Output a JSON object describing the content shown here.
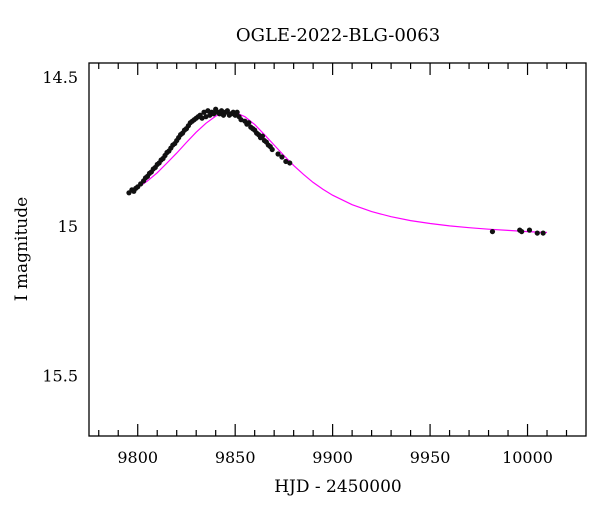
{
  "chart_data": {
    "type": "scatter",
    "title": "OGLE-2022-BLG-0063",
    "xlabel": "HJD - 2450000",
    "ylabel": "I magnitude",
    "xlim": [
      9775,
      10030
    ],
    "ylim": [
      15.7,
      14.45
    ],
    "y_inverted": true,
    "grid": false,
    "legend": "none",
    "x_ticks": [
      9800,
      9850,
      9900,
      9950,
      10000
    ],
    "x_tick_labels": [
      "9800",
      "9850",
      "9900",
      "9950",
      "10000"
    ],
    "y_ticks": [
      14.5,
      15,
      15.5
    ],
    "y_tick_labels": [
      "14.5",
      "15",
      "15.5"
    ],
    "colors": {
      "points": "#111111",
      "model": "#ff00ff",
      "axes": "#000000"
    },
    "series": [
      {
        "kind": "points",
        "x": [
          9795.5,
          9797.0,
          9798.0,
          9799.0,
          9800.0,
          9801.5,
          9803.0,
          9804.0,
          9805.0,
          9806.0,
          9807.0,
          9808.0,
          9809.0,
          9810.0,
          9811.0,
          9812.0,
          9813.0,
          9814.0,
          9815.0,
          9816.0,
          9817.0,
          9818.0,
          9819.0,
          9820.0,
          9821.0,
          9822.0,
          9823.0,
          9824.0,
          9825.0,
          9826.0,
          9827.0,
          9828.0,
          9829.0,
          9830.0,
          9831.0,
          9832.0,
          9833.0,
          9834.0,
          9835.0,
          9836.0,
          9837.0,
          9838.0,
          9839.0,
          9840.0,
          9841.0,
          9842.0,
          9843.0,
          9844.0,
          9845.0,
          9846.0,
          9847.0,
          9848.0,
          9849.0,
          9850.0,
          9851.0,
          9852.0,
          9853.0,
          9855.0,
          9856.0,
          9857.0,
          9858.0,
          9859.0,
          9860.0,
          9861.0,
          9862.0,
          9863.0,
          9864.0,
          9865.0,
          9866.0,
          9867.0,
          9868.0,
          9869.0,
          9872.0,
          9874.0,
          9876.0,
          9878.0,
          9982.0,
          9996.0,
          9997.0,
          10001.0,
          10005.0,
          10008.0
        ],
        "y": [
          14.885,
          14.875,
          14.88,
          14.87,
          14.865,
          14.855,
          14.845,
          14.835,
          14.83,
          14.82,
          14.815,
          14.805,
          14.8,
          14.79,
          14.785,
          14.775,
          14.77,
          14.76,
          14.75,
          14.745,
          14.735,
          14.725,
          14.72,
          14.71,
          14.7,
          14.69,
          14.685,
          14.675,
          14.67,
          14.66,
          14.65,
          14.645,
          14.64,
          14.635,
          14.63,
          14.625,
          14.635,
          14.615,
          14.63,
          14.61,
          14.625,
          14.615,
          14.62,
          14.605,
          14.615,
          14.62,
          14.61,
          14.625,
          14.615,
          14.61,
          14.625,
          14.62,
          14.615,
          14.625,
          14.615,
          14.63,
          14.64,
          14.645,
          14.655,
          14.65,
          14.665,
          14.67,
          14.675,
          14.685,
          14.69,
          14.7,
          14.695,
          14.71,
          14.715,
          14.725,
          14.73,
          14.74,
          14.755,
          14.765,
          14.78,
          14.785,
          15.015,
          15.01,
          15.015,
          15.01,
          15.02,
          15.02
        ]
      },
      {
        "kind": "model",
        "x": [
          9795,
          9800,
          9805,
          9810,
          9815,
          9820,
          9825,
          9830,
          9835,
          9840,
          9845,
          9850,
          9855,
          9860,
          9865,
          9870,
          9875,
          9880,
          9885,
          9890,
          9895,
          9900,
          9910,
          9920,
          9930,
          9940,
          9950,
          9960,
          9970,
          9980,
          9990,
          10000,
          10010
        ],
        "y": [
          14.888,
          14.868,
          14.845,
          14.818,
          14.785,
          14.752,
          14.716,
          14.682,
          14.652,
          14.628,
          14.615,
          14.616,
          14.63,
          14.656,
          14.69,
          14.725,
          14.76,
          14.793,
          14.823,
          14.85,
          14.873,
          14.893,
          14.925,
          14.948,
          14.965,
          14.978,
          14.988,
          14.996,
          15.002,
          15.007,
          15.011,
          15.015,
          15.018
        ]
      }
    ]
  }
}
